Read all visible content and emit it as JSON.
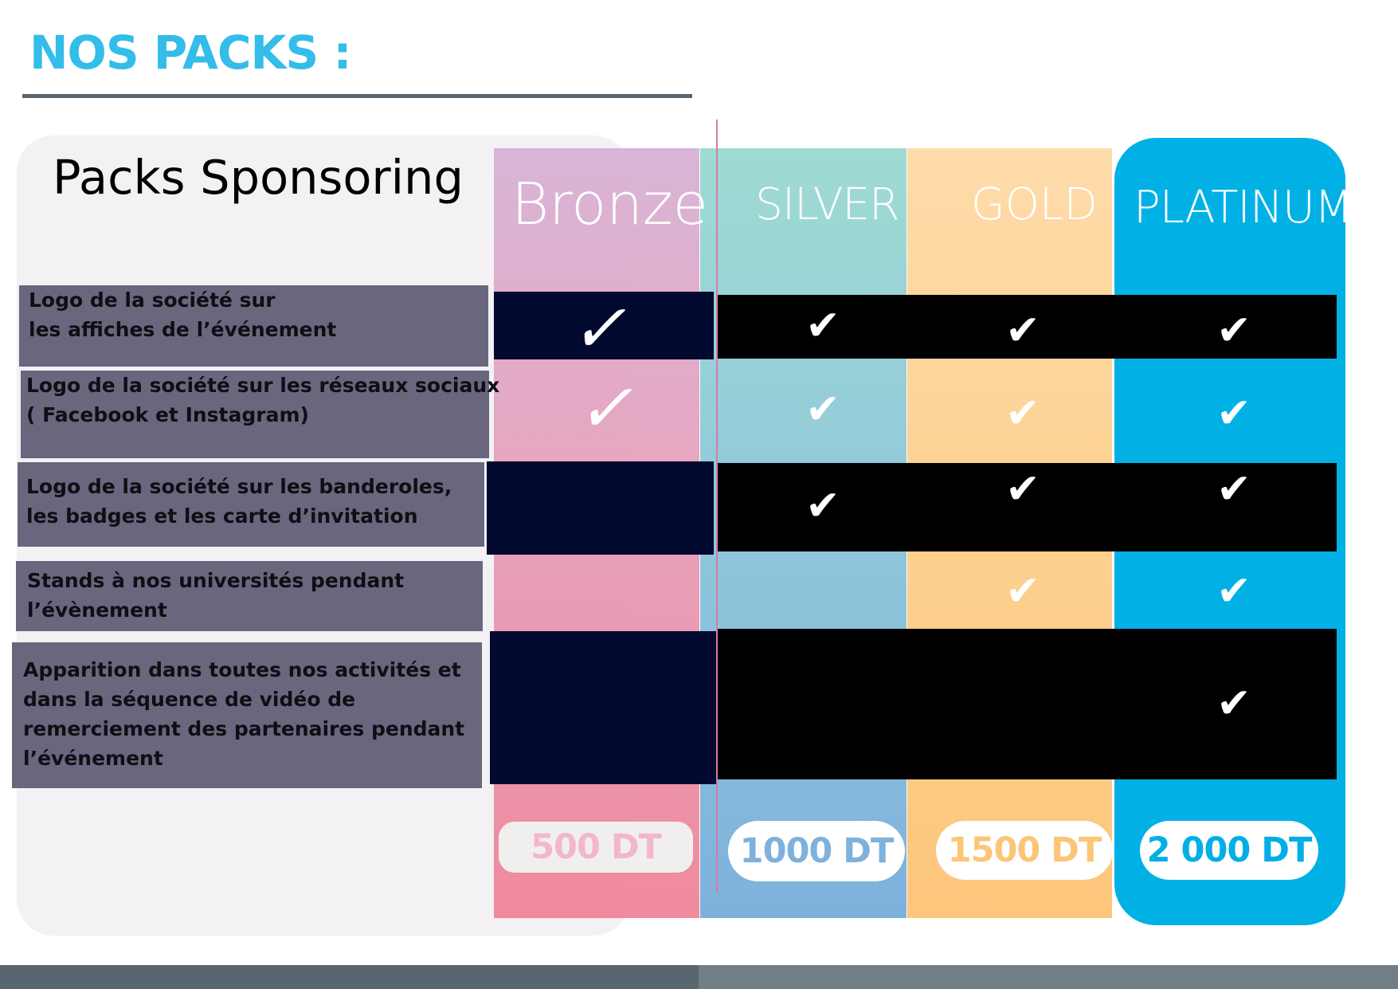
{
  "header": {
    "title": "NOS PACKS :"
  },
  "panel": {
    "title": "Packs Sponsoring"
  },
  "packs": [
    {
      "name": "Bronze",
      "price": "500 DT",
      "color": "#e5a4bf"
    },
    {
      "name": "SILVER",
      "price": "1000 DT",
      "color": "#92c9da"
    },
    {
      "name": "GOLD",
      "price": "1500 DT",
      "color": "#fdd190"
    },
    {
      "name": "PLATINUM",
      "price": "2 000 DT",
      "color": "#01b1e6"
    }
  ],
  "features": [
    {
      "lines": [
        "Logo de la société sur",
        "les affiches de l’événement"
      ],
      "included": [
        true,
        true,
        true,
        true
      ]
    },
    {
      "lines": [
        "Logo de la société sur les réseaux sociaux",
        "( Facebook et Instagram)"
      ],
      "included": [
        true,
        true,
        true,
        true
      ]
    },
    {
      "lines": [
        "Logo de la société sur les banderoles,",
        "les badges et les carte d’invitation"
      ],
      "included": [
        false,
        true,
        true,
        true
      ]
    },
    {
      "lines": [
        "Stands à nos  universités pendant",
        "l’évènement"
      ],
      "included": [
        false,
        false,
        true,
        true
      ]
    },
    {
      "lines": [
        "Apparition dans toutes nos activités et",
        "dans la séquence de vidéo de",
        "remerciement des partenaires pendant",
        "l’événement"
      ],
      "included": [
        false,
        false,
        false,
        true
      ]
    }
  ],
  "icons": {
    "check": "check-icon"
  },
  "colors": {
    "heading": "#33bde8",
    "navy": "#020a30",
    "label_bg": "#69677e",
    "footer": "#58666f"
  }
}
